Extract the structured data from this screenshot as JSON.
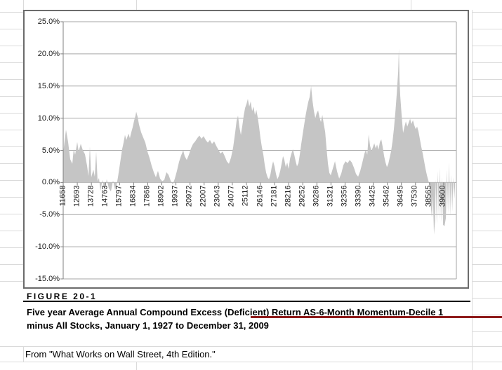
{
  "figure": {
    "label": "FIGURE 20-1",
    "caption_line1": "Five year Average Annual Compound Excess (Deficient) Return AS-6-Month Momentum-Decile 1",
    "caption_line2": "minus All Stocks, January 1, 1927 to December 31, 2009",
    "source": "From \"What Works on Wall Street, 4th Edition.\""
  },
  "colors": {
    "area_fill": "#c5c5c5",
    "plot_gridline": "#a6a6a6",
    "axis_line": "#808080",
    "sheet_gridline": "#dadada",
    "chart_border": "#6b6b6b",
    "accent_rule": "#8e1a1a",
    "text": "#000000"
  },
  "chart_data": {
    "type": "area",
    "title": "",
    "xlabel": "",
    "ylabel": "",
    "grid": true,
    "legend": "none",
    "series_name": "Five year average annual compound excess (deficient) return",
    "y_axis": {
      "min": -15,
      "max": 25,
      "step": 5,
      "format": "percent",
      "tick_values": [
        25,
        20,
        15,
        10,
        5,
        0,
        -5,
        -10,
        -15
      ],
      "tick_labels": [
        "25.0%",
        "20.0%",
        "15.0%",
        "10.0%",
        "5.0%",
        "0.0%",
        "-5.0%",
        "-10.0%",
        "-15.0%"
      ]
    },
    "x_axis": {
      "min": 11658,
      "max": 40530,
      "tick_values": [
        11658,
        12693,
        13728,
        14763,
        15797,
        16834,
        17868,
        18902,
        19937,
        20972,
        22007,
        23043,
        24077,
        25112,
        26146,
        27181,
        28216,
        29252,
        30286,
        31321,
        32356,
        33390,
        34425,
        35462,
        36495,
        37530,
        38565,
        39600
      ],
      "tick_labels": [
        "11658",
        "12693",
        "13728",
        "14763",
        "15797",
        "16834",
        "17868",
        "18902",
        "19937",
        "20972",
        "22007",
        "23043",
        "24077",
        "25112",
        "26146",
        "27181",
        "28216",
        "29252",
        "30286",
        "31321",
        "32356",
        "33390",
        "34425",
        "35462",
        "36495",
        "37530",
        "38565",
        "39600"
      ]
    },
    "points": [
      [
        11658,
        4.5
      ],
      [
        11761,
        6.5
      ],
      [
        11864,
        8.2
      ],
      [
        12019,
        6.3
      ],
      [
        12174,
        3.6
      ],
      [
        12328,
        2.9
      ],
      [
        12431,
        5.2
      ],
      [
        12535,
        4.3
      ],
      [
        12689,
        6.3
      ],
      [
        12792,
        4.8
      ],
      [
        12947,
        6.0
      ],
      [
        13102,
        5.0
      ],
      [
        13257,
        4.4
      ],
      [
        13411,
        2.6
      ],
      [
        13514,
        1.0
      ],
      [
        13618,
        5.6
      ],
      [
        13721,
        0.8
      ],
      [
        13875,
        2.0
      ],
      [
        13978,
        0.9
      ],
      [
        14082,
        4.8
      ],
      [
        14185,
        0.2
      ],
      [
        14288,
        0.7
      ],
      [
        14391,
        -1.3
      ],
      [
        14546,
        0.4
      ],
      [
        14700,
        -1.5
      ],
      [
        14855,
        0.5
      ],
      [
        15010,
        -0.9
      ],
      [
        15165,
        -1.4
      ],
      [
        15319,
        0.3
      ],
      [
        15474,
        -1.2
      ],
      [
        15577,
        -0.4
      ],
      [
        15680,
        0.8
      ],
      [
        15835,
        3.0
      ],
      [
        15990,
        5.2
      ],
      [
        16093,
        6.2
      ],
      [
        16196,
        7.4
      ],
      [
        16299,
        6.6
      ],
      [
        16454,
        7.6
      ],
      [
        16557,
        6.9
      ],
      [
        16660,
        7.8
      ],
      [
        16763,
        8.6
      ],
      [
        16866,
        9.6
      ],
      [
        16969,
        10.4
      ],
      [
        17021,
        11.0
      ],
      [
        17124,
        10.2
      ],
      [
        17227,
        9.0
      ],
      [
        17382,
        7.8
      ],
      [
        17537,
        7.0
      ],
      [
        17691,
        6.2
      ],
      [
        17846,
        4.8
      ],
      [
        18001,
        3.8
      ],
      [
        18155,
        2.6
      ],
      [
        18310,
        1.6
      ],
      [
        18465,
        0.8
      ],
      [
        18619,
        1.8
      ],
      [
        18774,
        0.6
      ],
      [
        18929,
        0.2
      ],
      [
        19084,
        0.4
      ],
      [
        19238,
        1.6
      ],
      [
        19393,
        1.2
      ],
      [
        19548,
        0.3
      ],
      [
        19702,
        -0.3
      ],
      [
        19857,
        0.6
      ],
      [
        20012,
        1.8
      ],
      [
        20167,
        3.2
      ],
      [
        20321,
        4.2
      ],
      [
        20476,
        5.0
      ],
      [
        20579,
        4.1
      ],
      [
        20734,
        3.5
      ],
      [
        20889,
        4.3
      ],
      [
        21043,
        5.3
      ],
      [
        21198,
        6.0
      ],
      [
        21353,
        6.4
      ],
      [
        21507,
        6.9
      ],
      [
        21662,
        7.3
      ],
      [
        21817,
        6.8
      ],
      [
        21971,
        7.2
      ],
      [
        22126,
        6.6
      ],
      [
        22281,
        6.2
      ],
      [
        22436,
        6.6
      ],
      [
        22590,
        6.0
      ],
      [
        22745,
        6.4
      ],
      [
        22900,
        5.7
      ],
      [
        23054,
        5.1
      ],
      [
        23209,
        4.5
      ],
      [
        23364,
        4.8
      ],
      [
        23518,
        4.1
      ],
      [
        23673,
        3.3
      ],
      [
        23828,
        2.9
      ],
      [
        23983,
        3.9
      ],
      [
        24137,
        5.4
      ],
      [
        24292,
        7.8
      ],
      [
        24395,
        9.6
      ],
      [
        24498,
        10.4
      ],
      [
        24601,
        8.6
      ],
      [
        24705,
        7.4
      ],
      [
        24808,
        8.8
      ],
      [
        24911,
        10.4
      ],
      [
        25014,
        11.6
      ],
      [
        25117,
        12.2
      ],
      [
        25220,
        13.0
      ],
      [
        25323,
        11.8
      ],
      [
        25426,
        12.6
      ],
      [
        25530,
        11.1
      ],
      [
        25633,
        11.8
      ],
      [
        25736,
        10.5
      ],
      [
        25839,
        11.3
      ],
      [
        25942,
        10.1
      ],
      [
        26045,
        8.7
      ],
      [
        26148,
        6.9
      ],
      [
        26251,
        5.5
      ],
      [
        26355,
        4.3
      ],
      [
        26458,
        2.7
      ],
      [
        26561,
        1.5
      ],
      [
        26664,
        0.8
      ],
      [
        26767,
        0.5
      ],
      [
        26870,
        1.2
      ],
      [
        26973,
        2.4
      ],
      [
        27076,
        3.3
      ],
      [
        27179,
        2.5
      ],
      [
        27283,
        1.3
      ],
      [
        27386,
        0.5
      ],
      [
        27489,
        1.0
      ],
      [
        27592,
        1.8
      ],
      [
        27695,
        2.9
      ],
      [
        27798,
        4.1
      ],
      [
        27901,
        3.5
      ],
      [
        28004,
        2.4
      ],
      [
        28108,
        3.1
      ],
      [
        28211,
        2.1
      ],
      [
        28314,
        3.7
      ],
      [
        28417,
        4.5
      ],
      [
        28520,
        5.2
      ],
      [
        28623,
        4.3
      ],
      [
        28726,
        3.3
      ],
      [
        28829,
        2.5
      ],
      [
        28933,
        3.0
      ],
      [
        29036,
        4.4
      ],
      [
        29139,
        6.0
      ],
      [
        29242,
        7.5
      ],
      [
        29345,
        8.9
      ],
      [
        29448,
        10.3
      ],
      [
        29551,
        11.5
      ],
      [
        29654,
        12.5
      ],
      [
        29758,
        13.3
      ],
      [
        29861,
        15.0
      ],
      [
        29964,
        12.7
      ],
      [
        30067,
        11.1
      ],
      [
        30170,
        10.0
      ],
      [
        30273,
        10.8
      ],
      [
        30376,
        11.2
      ],
      [
        30479,
        10.1
      ],
      [
        30583,
        9.4
      ],
      [
        30686,
        10.5
      ],
      [
        30789,
        9.1
      ],
      [
        30892,
        7.9
      ],
      [
        30995,
        5.3
      ],
      [
        31098,
        2.9
      ],
      [
        31201,
        1.5
      ],
      [
        31304,
        1.1
      ],
      [
        31459,
        2.2
      ],
      [
        31614,
        3.3
      ],
      [
        31769,
        1.7
      ],
      [
        31923,
        0.6
      ],
      [
        32078,
        1.4
      ],
      [
        32233,
        2.7
      ],
      [
        32387,
        3.3
      ],
      [
        32542,
        3.0
      ],
      [
        32697,
        3.5
      ],
      [
        32852,
        3.1
      ],
      [
        33006,
        2.3
      ],
      [
        33161,
        1.3
      ],
      [
        33316,
        0.9
      ],
      [
        33470,
        1.8
      ],
      [
        33625,
        3.1
      ],
      [
        33780,
        4.5
      ],
      [
        33883,
        5.1
      ],
      [
        33986,
        4.3
      ],
      [
        34089,
        7.5
      ],
      [
        34193,
        5.7
      ],
      [
        34296,
        4.9
      ],
      [
        34399,
        5.5
      ],
      [
        34502,
        6.1
      ],
      [
        34605,
        5.3
      ],
      [
        34708,
        5.9
      ],
      [
        34811,
        5.1
      ],
      [
        34914,
        6.3
      ],
      [
        35018,
        6.7
      ],
      [
        35121,
        5.5
      ],
      [
        35224,
        4.1
      ],
      [
        35327,
        3.1
      ],
      [
        35430,
        2.4
      ],
      [
        35533,
        2.9
      ],
      [
        35636,
        3.9
      ],
      [
        35739,
        4.9
      ],
      [
        35843,
        6.4
      ],
      [
        35946,
        8.4
      ],
      [
        36049,
        10.9
      ],
      [
        36152,
        13.8
      ],
      [
        36255,
        17.2
      ],
      [
        36307,
        20.8
      ],
      [
        36358,
        15.8
      ],
      [
        36410,
        13.4
      ],
      [
        36461,
        11.9
      ],
      [
        36513,
        10.4
      ],
      [
        36564,
        9.0
      ],
      [
        36616,
        7.7
      ],
      [
        36719,
        8.7
      ],
      [
        36822,
        9.5
      ],
      [
        36925,
        8.7
      ],
      [
        37028,
        9.3
      ],
      [
        37131,
        9.9
      ],
      [
        37235,
        9.1
      ],
      [
        37338,
        9.7
      ],
      [
        37441,
        8.9
      ],
      [
        37544,
        8.3
      ],
      [
        37647,
        8.7
      ],
      [
        37750,
        7.9
      ],
      [
        37853,
        6.7
      ],
      [
        37956,
        5.5
      ],
      [
        38059,
        4.5
      ],
      [
        38162,
        3.3
      ],
      [
        38265,
        2.1
      ],
      [
        38369,
        1.1
      ],
      [
        38472,
        0.3
      ],
      [
        38575,
        -0.6
      ],
      [
        38626,
        -3.0
      ],
      [
        38729,
        -5.5
      ],
      [
        38807,
        -2.0
      ],
      [
        38884,
        -8.1
      ],
      [
        38961,
        -6.0
      ],
      [
        39013,
        0.5
      ],
      [
        39090,
        -6.5
      ],
      [
        39168,
        1.8
      ],
      [
        39245,
        -5.8
      ],
      [
        39322,
        2.3
      ],
      [
        39400,
        -6.2
      ],
      [
        39477,
        0.8
      ],
      [
        39554,
        -6.6
      ],
      [
        39658,
        -6.8
      ],
      [
        39761,
        -5.5
      ],
      [
        39838,
        2.0
      ],
      [
        39915,
        -4.8
      ],
      [
        39993,
        3.1
      ],
      [
        40070,
        -5.2
      ],
      [
        40147,
        1.2
      ],
      [
        40225,
        -4.5
      ],
      [
        40302,
        0.8
      ],
      [
        40379,
        -2.5
      ],
      [
        40431,
        -0.5
      ]
    ]
  }
}
